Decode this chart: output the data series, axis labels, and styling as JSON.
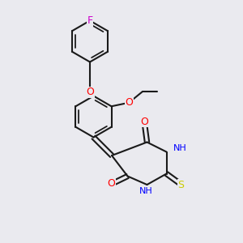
{
  "bg_color": "#eaeaef",
  "bond_color": "#1a1a1a",
  "line_width": 1.5,
  "font_size": 9,
  "atom_colors": {
    "F": "#cc00cc",
    "O": "#ff0000",
    "N": "#0000ff",
    "S": "#cccc00",
    "H_gray": "#888888",
    "C": "#1a1a1a"
  }
}
